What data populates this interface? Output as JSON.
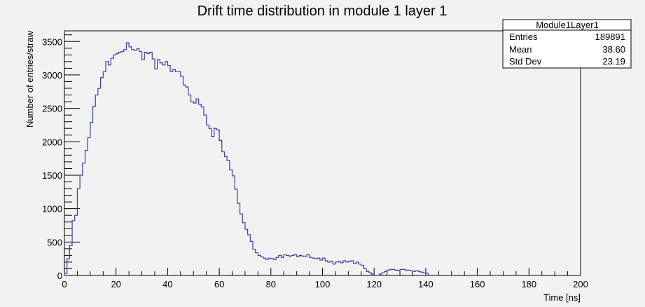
{
  "chart_data": {
    "type": "histogram",
    "title": "Drift time distribution in module 1 layer 1",
    "xlabel": "Time [ns]",
    "ylabel": "Number of entries/straw",
    "xlim": [
      0,
      200
    ],
    "ylim": [
      0,
      3660
    ],
    "xticks": [
      0,
      20,
      40,
      60,
      80,
      100,
      120,
      140,
      160,
      180,
      200
    ],
    "yticks": [
      0,
      500,
      1000,
      1500,
      2000,
      2500,
      3000,
      3500
    ],
    "bin_width": 1,
    "x_start": 0,
    "line_color": "#3c3ca0",
    "values": [
      30,
      250,
      450,
      820,
      900,
      1300,
      1500,
      1680,
      1870,
      2060,
      2290,
      2530,
      2700,
      2800,
      2960,
      3050,
      3200,
      3150,
      3250,
      3300,
      3320,
      3340,
      3350,
      3380,
      3480,
      3420,
      3380,
      3370,
      3390,
      3350,
      3230,
      3340,
      3320,
      3340,
      3240,
      3090,
      3230,
      3180,
      3150,
      3200,
      3140,
      3050,
      3080,
      3050,
      3050,
      2980,
      2850,
      2820,
      2700,
      2600,
      2580,
      2640,
      2560,
      2520,
      2400,
      2250,
      2200,
      2080,
      2200,
      2180,
      2020,
      1850,
      1780,
      1720,
      1580,
      1490,
      1290,
      1080,
      920,
      790,
      690,
      610,
      510,
      390,
      340,
      300,
      280,
      260,
      240,
      260,
      250,
      240,
      270,
      300,
      270,
      310,
      300,
      290,
      300,
      310,
      280,
      300,
      290,
      290,
      310,
      270,
      260,
      250,
      260,
      230,
      260,
      220,
      200,
      210,
      170,
      200,
      210,
      190,
      220,
      200,
      210,
      220,
      180,
      200,
      170,
      150,
      100,
      60,
      40,
      20,
      0,
      0,
      10,
      0,
      0,
      0,
      0,
      0,
      0,
      0,
      0,
      0,
      0,
      0,
      0,
      0,
      0,
      0,
      0,
      0,
      0,
      0,
      0,
      0,
      0,
      0,
      0,
      0,
      0,
      0,
      0,
      0,
      0,
      0,
      0,
      0,
      0,
      0,
      0,
      0,
      0,
      0,
      0,
      0,
      0,
      0,
      0,
      0,
      0,
      0,
      0,
      0,
      0,
      0,
      0,
      0,
      0,
      0,
      0,
      0,
      0,
      0,
      0,
      0,
      0,
      0,
      0,
      0,
      0,
      0,
      0,
      0,
      0,
      0,
      0,
      0
    ],
    "tail_values": [
      0,
      0,
      20,
      40,
      60,
      80,
      90,
      90,
      80,
      70,
      90,
      90,
      80,
      80,
      70,
      60,
      70,
      60,
      50,
      40,
      30
    ]
  },
  "stats_box": {
    "name": "Module1Layer1",
    "rows": [
      {
        "label": "Entries",
        "value": "189891"
      },
      {
        "label": "Mean",
        "value": "38.60"
      },
      {
        "label": "Std Dev",
        "value": "23.19"
      }
    ]
  }
}
